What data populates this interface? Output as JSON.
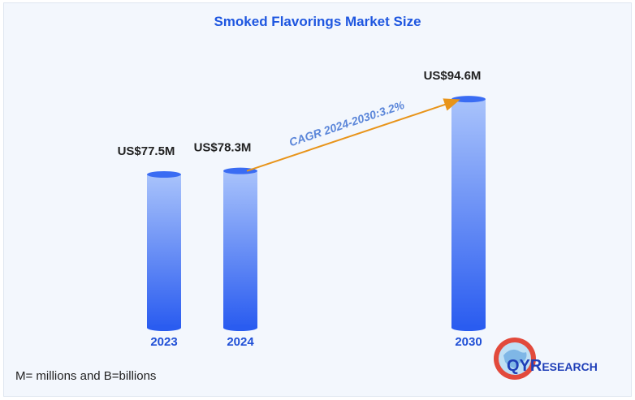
{
  "chart_data": {
    "type": "bar",
    "title": "Smoked Flavorings Market Size",
    "categories": [
      "2023",
      "2024",
      "2030"
    ],
    "values": [
      77.5,
      78.3,
      94.6
    ],
    "value_labels": [
      "US$77.5M",
      "US$78.3M",
      "US$94.6M"
    ],
    "unit": "US$ millions",
    "annotation": "CAGR 2024-2030:3.2%",
    "ylim": [
      0,
      100
    ],
    "grid": false,
    "legend": "none"
  },
  "footnote": "M= millions and B=billions",
  "logo": {
    "letters_big": "QYR",
    "letters_small": "ESEARCH"
  },
  "colors": {
    "title": "#1f57e0",
    "bar_top": "#a9c3fb",
    "bar_bottom": "#2a5cf0",
    "cagr_line": "#e8941a",
    "cagr_text": "#5b86d9",
    "year_label": "#1f4fd6"
  }
}
